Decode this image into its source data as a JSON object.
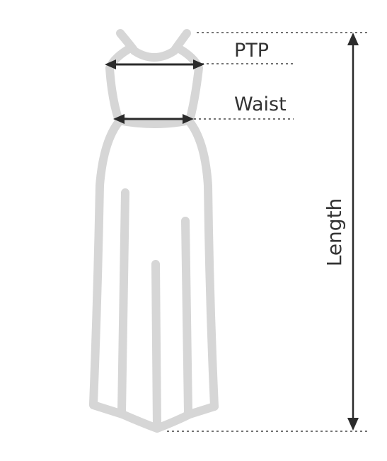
{
  "labels": {
    "ptp": "PTP",
    "waist": "Waist",
    "length": "Length"
  },
  "colors": {
    "garment": "#d6d6d6",
    "measure": "#2b2b2b",
    "guide": "#444444",
    "text": "#333333"
  }
}
